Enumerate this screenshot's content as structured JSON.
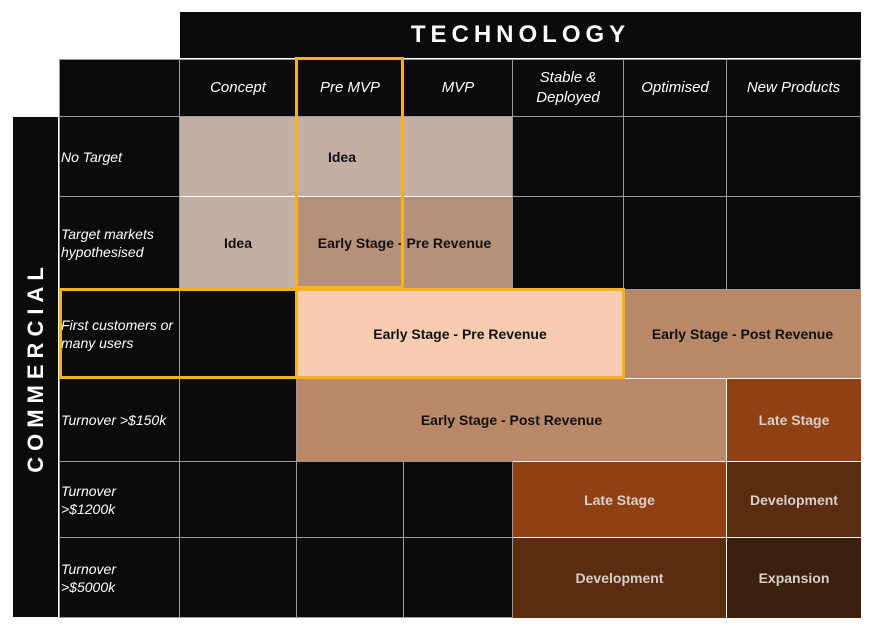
{
  "title": "TECHNOLOGY",
  "side_label": "COMMERCIAL",
  "columns": [
    "Concept",
    "Pre MVP",
    "MVP",
    "Stable & Deployed",
    "Optimised",
    "New Products"
  ],
  "rows": [
    "No Target",
    "Target markets hypothesised",
    "First customers or many users",
    "Turnover >$150k",
    "Turnover >$1200k",
    "Turnover >$5000k"
  ],
  "blocks": {
    "idea_top": "Idea",
    "idea_left": "Idea",
    "early_pre_small": "Early Stage - Pre Revenue",
    "early_pre_main": "Early Stage - Pre Revenue",
    "early_post_right": "Early Stage - Post Revenue",
    "early_post_wide": "Early Stage - Post Revenue",
    "late_150k": "Late Stage",
    "late_1200k": "Late Stage",
    "dev_1200k": "Development",
    "dev_5000k": "Development",
    "expansion": "Expansion"
  },
  "colors": {
    "grid_bg": "#0b0b0b",
    "idea": "#c4afa7",
    "early_pre": "#b6917a",
    "early_pre_highlight": "#f8ccb0",
    "early_post": "#b98868",
    "late": "#8f4015",
    "development": "#5a2c10",
    "expansion": "#3a200d",
    "highlight_border": "#f5b21b"
  }
}
